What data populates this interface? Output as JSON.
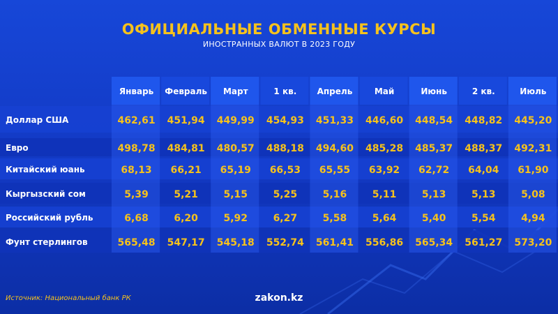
{
  "header": {
    "title": "ОФИЦИАЛЬНЫЕ ОБМЕННЫЕ КУРСЫ",
    "subtitle": "ИНОСТРАННЫХ ВАЛЮТ В 2023 ГОДУ"
  },
  "footer": {
    "source": "Источник: Национальный банк РК",
    "brand": "zakon.kz"
  },
  "colors": {
    "accent": "#f6c21c",
    "background": "#1440d0",
    "column_header": "#1d52e6"
  },
  "chart_data": {
    "type": "table",
    "columns": [
      "Январь",
      "Февраль",
      "Март",
      "1 кв.",
      "Апрель",
      "Май",
      "Июнь",
      "2 кв.",
      "Июль"
    ],
    "rows": [
      {
        "label": "Доллар США",
        "values": [
          "462,61",
          "451,94",
          "449,99",
          "454,93",
          "451,33",
          "446,60",
          "448,54",
          "448,82",
          "445,20"
        ]
      },
      {
        "label": "Евро",
        "values": [
          "498,78",
          "484,81",
          "480,57",
          "488,18",
          "494,60",
          "485,28",
          "485,37",
          "488,37",
          "492,31"
        ]
      },
      {
        "label": "Китайский юань",
        "values": [
          "68,13",
          "66,21",
          "65,19",
          "66,53",
          "65,55",
          "63,92",
          "62,72",
          "64,04",
          "61,90"
        ]
      },
      {
        "label": "Кыргызский сом",
        "values": [
          "5,39",
          "5,21",
          "5,15",
          "5,25",
          "5,16",
          "5,11",
          "5,13",
          "5,13",
          "5,08"
        ]
      },
      {
        "label": "Российский рубль",
        "values": [
          "6,68",
          "6,20",
          "5,92",
          "6,27",
          "5,58",
          "5,64",
          "5,40",
          "5,54",
          "4,94"
        ]
      },
      {
        "label": "Фунт стерлингов",
        "values": [
          "565,48",
          "547,17",
          "545,18",
          "552,74",
          "561,41",
          "556,86",
          "565,34",
          "561,27",
          "573,20"
        ]
      }
    ]
  }
}
